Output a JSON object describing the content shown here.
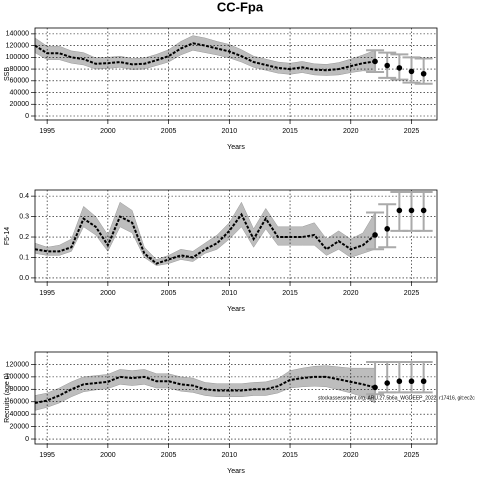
{
  "title": "CC-Fpa",
  "chart_data": [
    {
      "type": "line",
      "ylabel": "SSB",
      "xlabel": "Years",
      "xlim": [
        1994,
        2027.1
      ],
      "xticks": [
        1995,
        2000,
        2005,
        2010,
        2015,
        2020,
        2025
      ],
      "ylim": [
        -6800,
        150000
      ],
      "yticks": [
        0,
        20000,
        40000,
        60000,
        80000,
        100000,
        120000,
        140000
      ],
      "grid": true,
      "x": [
        1994,
        1995,
        1996,
        1997,
        1998,
        1999,
        2000,
        2001,
        2002,
        2003,
        2004,
        2005,
        2006,
        2007,
        2008,
        2009,
        2010,
        2011,
        2012,
        2013,
        2014,
        2015,
        2016,
        2017,
        2018,
        2019,
        2020,
        2021,
        2022
      ],
      "values": [
        120000,
        107000,
        107000,
        100000,
        97000,
        89000,
        90000,
        92000,
        88000,
        89000,
        95000,
        102000,
        115000,
        124000,
        120000,
        115000,
        110000,
        102000,
        92000,
        87000,
        82000,
        80000,
        83000,
        79000,
        78000,
        80000,
        85000,
        90000,
        93000
      ],
      "lower": [
        108000,
        96000,
        96000,
        90000,
        87000,
        80000,
        81000,
        83000,
        79000,
        80000,
        86000,
        92000,
        104000,
        112000,
        108000,
        104000,
        99000,
        92000,
        83000,
        78000,
        73000,
        71000,
        74000,
        70000,
        69000,
        70000,
        74000,
        77000,
        76000
      ],
      "upper": [
        133000,
        119000,
        119000,
        111000,
        108000,
        99000,
        100000,
        102000,
        98000,
        99000,
        105000,
        113000,
        127000,
        137000,
        133000,
        127000,
        122000,
        113000,
        102000,
        97000,
        92000,
        90000,
        93000,
        89000,
        88000,
        91000,
        97000,
        104000,
        112000
      ],
      "forecast": {
        "x": [
          2022,
          2023,
          2024,
          2025,
          2026
        ],
        "values": [
          93000,
          86000,
          82000,
          76000,
          72000
        ],
        "lower": [
          75000,
          65000,
          62000,
          57000,
          55000
        ],
        "upper": [
          112000,
          108000,
          105000,
          100000,
          98000
        ]
      }
    },
    {
      "type": "line",
      "ylabel": "F5-14",
      "xlabel": "Years",
      "xlim": [
        1994,
        2027.1
      ],
      "xticks": [
        1995,
        2000,
        2005,
        2010,
        2015,
        2020,
        2025
      ],
      "ylim": [
        -0.02,
        0.43
      ],
      "yticks": [
        {
          "value": 0,
          "label": "0.0"
        },
        0.1,
        0.2,
        0.3,
        0.4
      ],
      "grid": true,
      "x": [
        1994,
        1995,
        1996,
        1997,
        1998,
        1999,
        2000,
        2001,
        2002,
        2003,
        2004,
        2005,
        2006,
        2007,
        2008,
        2009,
        2010,
        2011,
        2012,
        2013,
        2014,
        2015,
        2016,
        2017,
        2018,
        2019,
        2020,
        2021,
        2022
      ],
      "values": [
        0.14,
        0.13,
        0.13,
        0.15,
        0.29,
        0.25,
        0.16,
        0.3,
        0.27,
        0.12,
        0.07,
        0.09,
        0.11,
        0.1,
        0.14,
        0.17,
        0.23,
        0.31,
        0.19,
        0.29,
        0.2,
        0.2,
        0.2,
        0.21,
        0.14,
        0.18,
        0.14,
        0.16,
        0.21
      ],
      "lower": [
        0.12,
        0.11,
        0.11,
        0.13,
        0.25,
        0.21,
        0.13,
        0.25,
        0.22,
        0.1,
        0.06,
        0.07,
        0.09,
        0.08,
        0.12,
        0.14,
        0.19,
        0.25,
        0.15,
        0.24,
        0.16,
        0.16,
        0.16,
        0.16,
        0.11,
        0.14,
        0.1,
        0.12,
        0.14
      ],
      "upper": [
        0.17,
        0.15,
        0.16,
        0.19,
        0.35,
        0.3,
        0.21,
        0.37,
        0.33,
        0.15,
        0.09,
        0.11,
        0.14,
        0.13,
        0.17,
        0.21,
        0.27,
        0.37,
        0.24,
        0.34,
        0.25,
        0.25,
        0.25,
        0.27,
        0.19,
        0.23,
        0.19,
        0.22,
        0.32
      ],
      "forecast": {
        "x": [
          2022,
          2023,
          2024,
          2025,
          2026
        ],
        "values": [
          0.21,
          0.24,
          0.33,
          0.33,
          0.33
        ],
        "lower": [
          0.14,
          0.15,
          0.23,
          0.23,
          0.23
        ],
        "upper": [
          0.32,
          0.36,
          0.42,
          0.42,
          0.42
        ]
      }
    },
    {
      "type": "line",
      "ylabel": "Recruits (age 0)",
      "xlabel": "Years",
      "xlim": [
        1994,
        2027.1
      ],
      "xticks": [
        1995,
        2000,
        2005,
        2010,
        2015,
        2020,
        2025
      ],
      "ylim": [
        -8000,
        140000
      ],
      "yticks": [
        0,
        20000,
        40000,
        60000,
        80000,
        100000,
        120000
      ],
      "grid": true,
      "annotation": "stockassessment.org, ARU.27.5b6a_WGDEEP_2022, r17416, git:ec2c",
      "x": [
        1994,
        1995,
        1996,
        1997,
        1998,
        1999,
        2000,
        2001,
        2002,
        2003,
        2004,
        2005,
        2006,
        2007,
        2008,
        2009,
        2010,
        2011,
        2012,
        2013,
        2014,
        2015,
        2016,
        2017,
        2018,
        2019,
        2020,
        2021,
        2022
      ],
      "values": [
        58000,
        62000,
        70000,
        80000,
        88000,
        90000,
        92000,
        100000,
        98000,
        100000,
        93000,
        93000,
        88000,
        86000,
        80000,
        78000,
        78000,
        78000,
        80000,
        80000,
        85000,
        95000,
        98000,
        100000,
        100000,
        96000,
        92000,
        88000,
        83000
      ],
      "lower": [
        46000,
        51000,
        58000,
        68000,
        76000,
        79000,
        81000,
        88000,
        86000,
        88000,
        82000,
        82000,
        77000,
        75000,
        70000,
        68000,
        68000,
        68000,
        70000,
        70000,
        74000,
        82000,
        84000,
        85000,
        84000,
        79000,
        74000,
        68000,
        58000
      ],
      "upper": [
        70000,
        74000,
        82000,
        92000,
        100000,
        102000,
        104000,
        112000,
        110000,
        112000,
        105000,
        105000,
        100000,
        98000,
        91000,
        89000,
        89000,
        89000,
        91000,
        92000,
        97000,
        110000,
        114000,
        117000,
        118000,
        116000,
        114000,
        114000,
        114000
      ],
      "forecast": {
        "x": [
          2022,
          2023,
          2024,
          2025,
          2026
        ],
        "values": [
          83000,
          90000,
          93000,
          93000,
          93000
        ],
        "lower": [
          72000,
          75000,
          75000,
          75000,
          75000
        ],
        "upper": [
          124000,
          124000,
          124000,
          124000,
          124000
        ]
      }
    }
  ]
}
